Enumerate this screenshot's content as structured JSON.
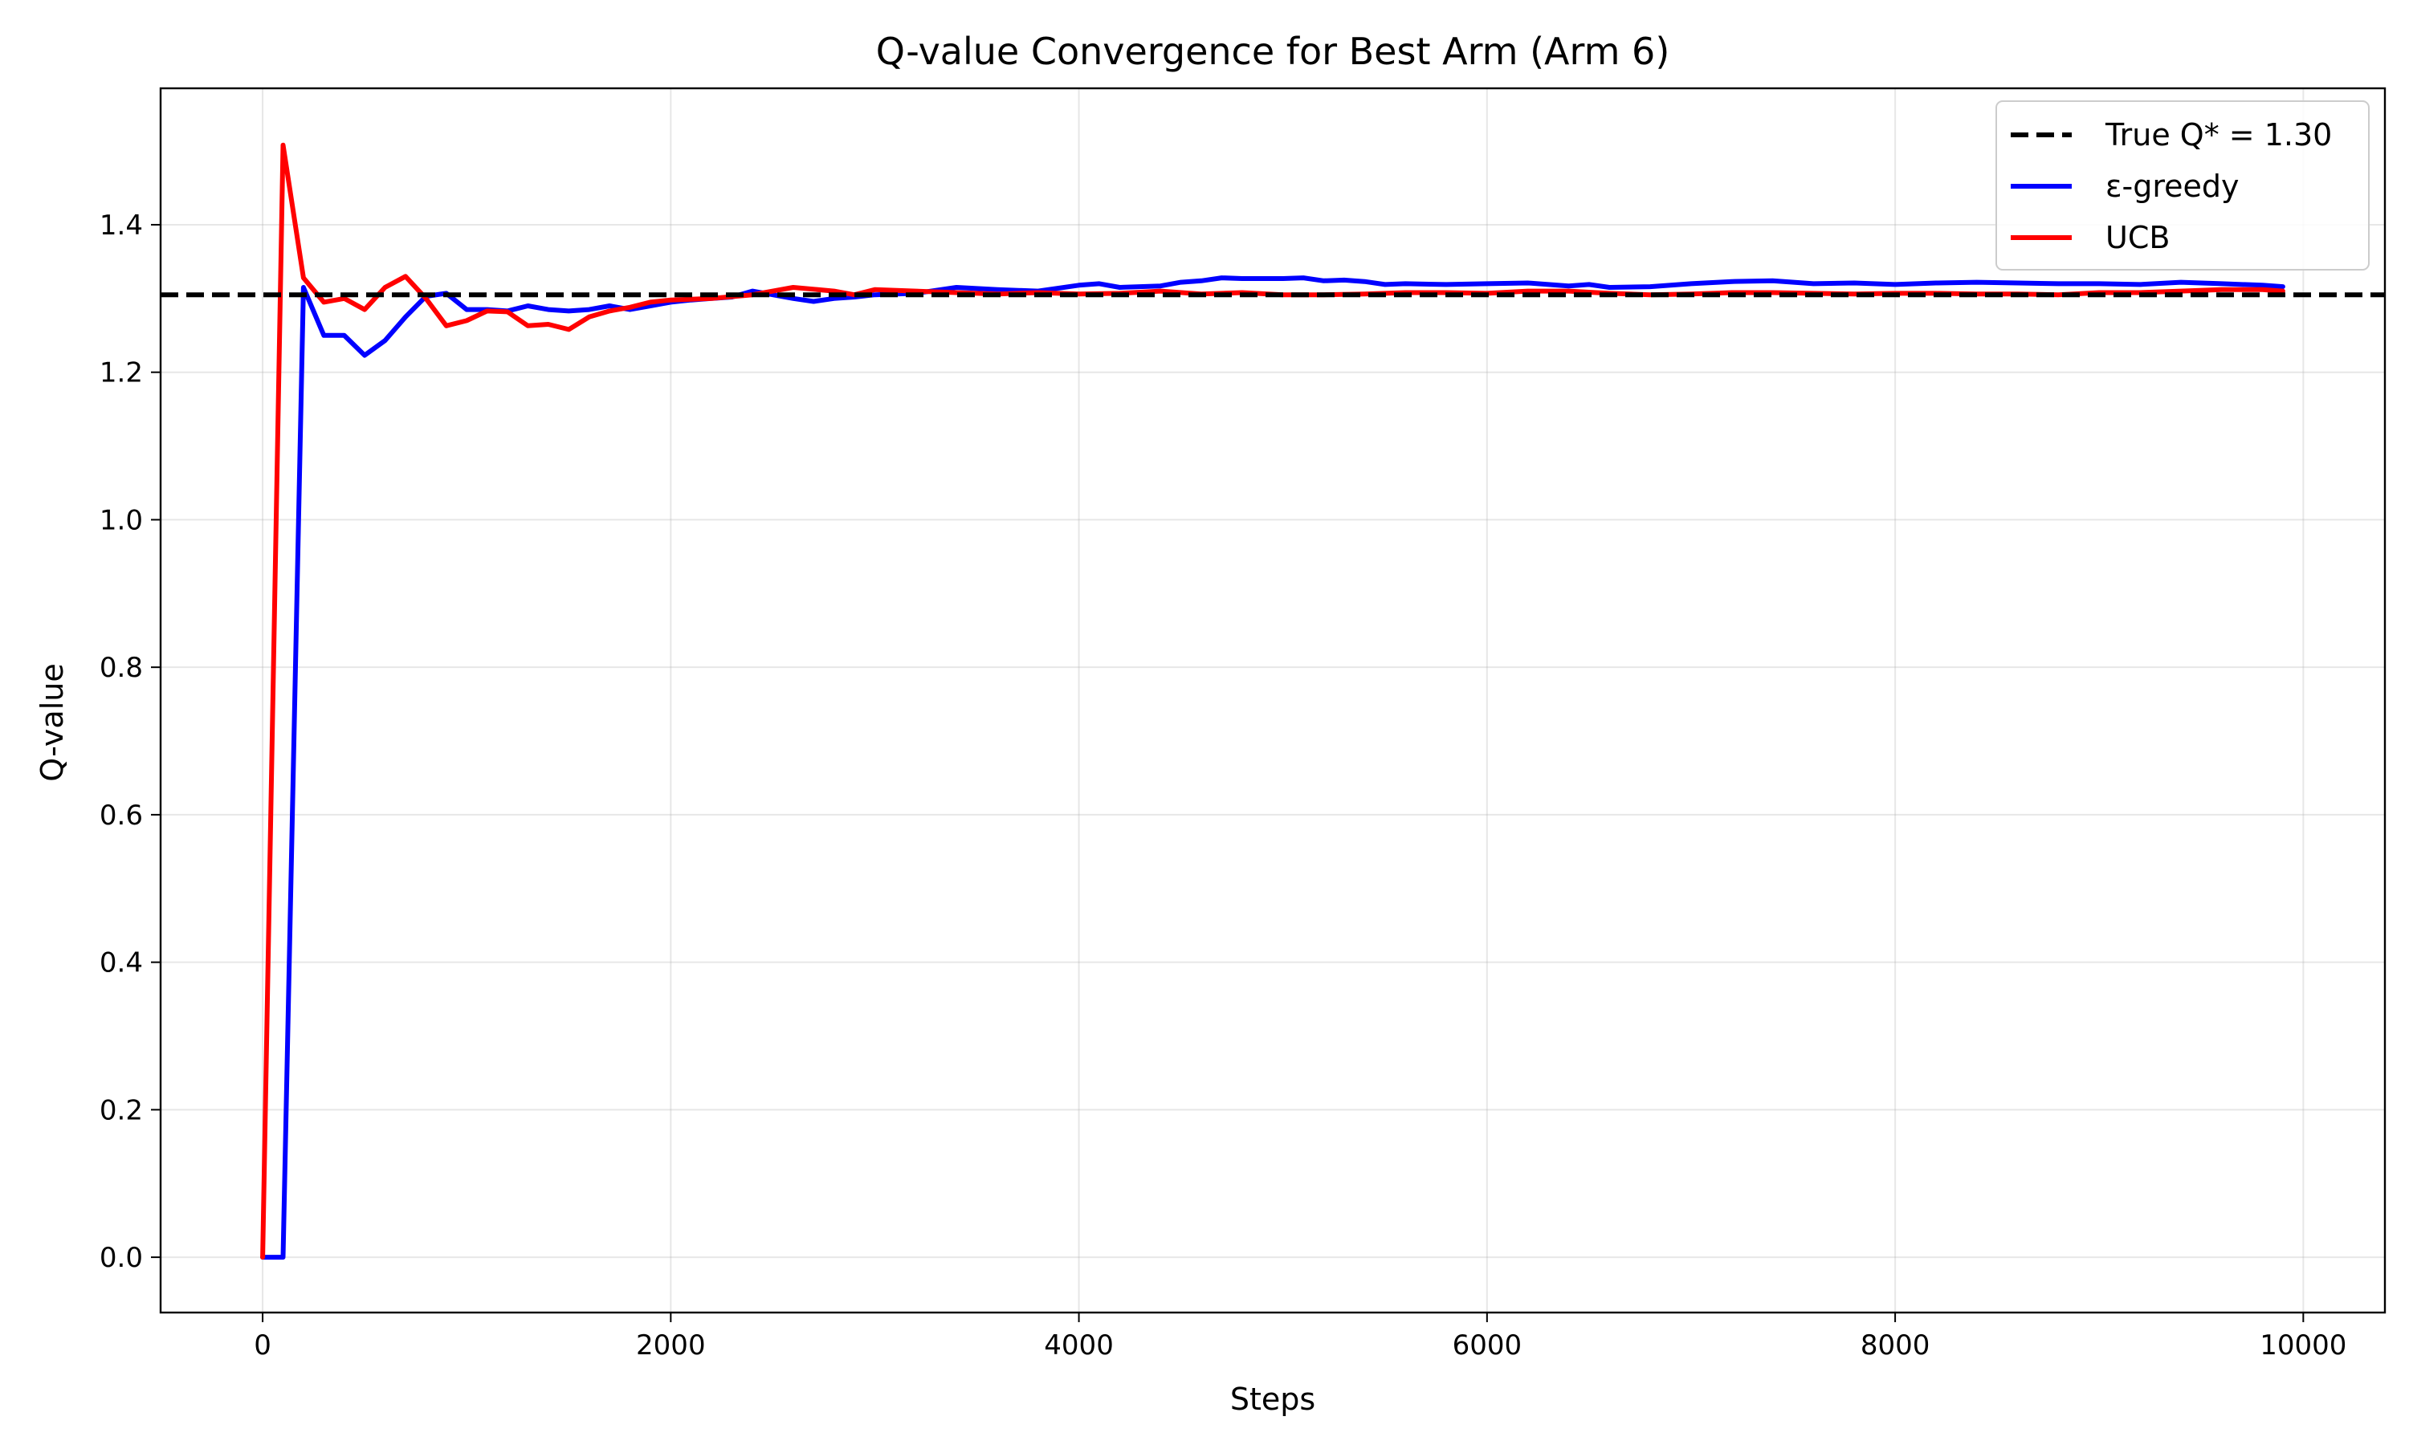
{
  "chart_data": {
    "type": "line",
    "title": "Q-value Convergence for Best Arm (Arm 6)",
    "xlabel": "Steps",
    "ylabel": "Q-value",
    "xlim": [
      -500,
      10400
    ],
    "ylim": [
      -0.075,
      1.585
    ],
    "xticks": [
      0,
      2000,
      4000,
      6000,
      8000,
      10000
    ],
    "xtick_labels": [
      "0",
      "2000",
      "4000",
      "6000",
      "8000",
      "10000"
    ],
    "yticks": [
      0.0,
      0.2,
      0.4,
      0.6,
      0.8,
      1.0,
      1.2,
      1.4
    ],
    "ytick_labels": [
      "0.0",
      "0.2",
      "0.4",
      "0.6",
      "0.8",
      "1.0",
      "1.2",
      "1.4"
    ],
    "grid": true,
    "legend_position": "upper-right",
    "reference_line": {
      "label": "True Q* = 1.30",
      "y": 1.305,
      "color": "#000000",
      "style": "dashed"
    },
    "series": [
      {
        "name": "ε-greedy",
        "color": "#0000ff",
        "x": [
          0,
          100,
          200,
          300,
          400,
          500,
          600,
          700,
          800,
          900,
          1000,
          1100,
          1200,
          1300,
          1400,
          1500,
          1600,
          1700,
          1800,
          1900,
          2000,
          2100,
          2200,
          2300,
          2400,
          2500,
          2600,
          2700,
          2800,
          2900,
          3000,
          3200,
          3400,
          3600,
          3800,
          4000,
          4100,
          4200,
          4400,
          4500,
          4600,
          4700,
          4800,
          4900,
          5000,
          5100,
          5200,
          5300,
          5400,
          5500,
          5600,
          5800,
          6000,
          6200,
          6400,
          6500,
          6600,
          6800,
          7000,
          7200,
          7400,
          7600,
          7800,
          8000,
          8200,
          8400,
          8600,
          8800,
          9000,
          9200,
          9400,
          9600,
          9800,
          9900
        ],
        "values": [
          0.0,
          0.0,
          1.315,
          1.25,
          1.25,
          1.223,
          1.243,
          1.275,
          1.303,
          1.307,
          1.285,
          1.285,
          1.283,
          1.29,
          1.285,
          1.283,
          1.285,
          1.29,
          1.285,
          1.29,
          1.295,
          1.298,
          1.3,
          1.302,
          1.31,
          1.305,
          1.3,
          1.296,
          1.3,
          1.302,
          1.305,
          1.307,
          1.315,
          1.312,
          1.31,
          1.318,
          1.32,
          1.315,
          1.317,
          1.322,
          1.324,
          1.328,
          1.327,
          1.327,
          1.327,
          1.328,
          1.324,
          1.325,
          1.323,
          1.319,
          1.32,
          1.319,
          1.32,
          1.321,
          1.317,
          1.319,
          1.315,
          1.316,
          1.32,
          1.323,
          1.324,
          1.32,
          1.321,
          1.319,
          1.321,
          1.322,
          1.321,
          1.32,
          1.32,
          1.319,
          1.322,
          1.32,
          1.318,
          1.316
        ]
      },
      {
        "name": "UCB",
        "color": "#ff0000",
        "x": [
          0,
          100,
          200,
          300,
          400,
          500,
          600,
          700,
          800,
          900,
          1000,
          1100,
          1200,
          1300,
          1400,
          1500,
          1600,
          1700,
          1800,
          1900,
          2000,
          2200,
          2400,
          2600,
          2800,
          2900,
          3000,
          3200,
          3400,
          3600,
          3800,
          4000,
          4200,
          4400,
          4600,
          4800,
          5000,
          5200,
          5400,
          5600,
          5800,
          6000,
          6200,
          6400,
          6600,
          6800,
          7000,
          7200,
          7400,
          7600,
          7800,
          8000,
          8200,
          8400,
          8600,
          8800,
          9000,
          9200,
          9400,
          9600,
          9800,
          9900
        ],
        "values": [
          0.0,
          1.508,
          1.328,
          1.295,
          1.3,
          1.285,
          1.315,
          1.33,
          1.3,
          1.263,
          1.27,
          1.283,
          1.282,
          1.263,
          1.265,
          1.258,
          1.275,
          1.283,
          1.288,
          1.295,
          1.298,
          1.3,
          1.305,
          1.315,
          1.31,
          1.305,
          1.312,
          1.31,
          1.308,
          1.306,
          1.308,
          1.306,
          1.307,
          1.31,
          1.306,
          1.308,
          1.305,
          1.305,
          1.306,
          1.308,
          1.308,
          1.307,
          1.31,
          1.31,
          1.307,
          1.305,
          1.306,
          1.308,
          1.308,
          1.307,
          1.306,
          1.307,
          1.307,
          1.306,
          1.306,
          1.305,
          1.308,
          1.308,
          1.31,
          1.312,
          1.312,
          1.31
        ]
      }
    ]
  }
}
